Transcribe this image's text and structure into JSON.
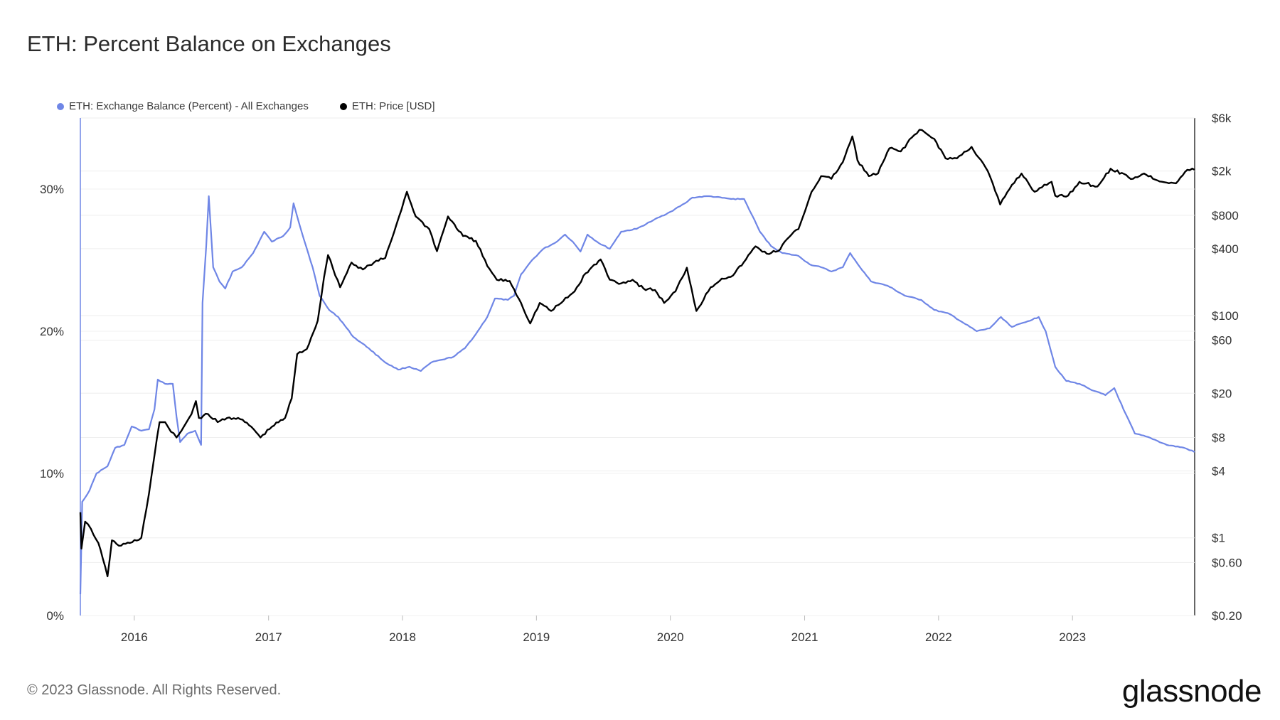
{
  "title": "ETH: Percent Balance on Exchanges",
  "footer": "© 2023 Glassnode. All Rights Reserved.",
  "logo": "glassnode",
  "chart_data": {
    "type": "line",
    "title": "ETH: Percent Balance on Exchanges",
    "legend_position": "top-left",
    "grid": true,
    "x_ticks": [
      "2016",
      "2017",
      "2018",
      "2019",
      "2020",
      "2021",
      "2022",
      "2023"
    ],
    "x_range": [
      "2015-08-07",
      "2023-11-30"
    ],
    "y_left": {
      "ticks": [
        "0%",
        "10%",
        "20%",
        "30%"
      ],
      "range": [
        0,
        35
      ]
    },
    "y_right": {
      "scale": "log",
      "ticks": [
        "$6k",
        "$2k",
        "$800",
        "$400",
        "$100",
        "$60",
        "$20",
        "$8",
        "$4",
        "$1",
        "$0.60",
        "$0.20"
      ],
      "range": [
        0.2,
        6000
      ]
    },
    "series": [
      {
        "name": "ETH: Exchange Balance (Percent) - All Exchanges",
        "axis": "left",
        "color": "#6f86e6",
        "points": [
          [
            "2015-08-07",
            1.5
          ],
          [
            "2015-08-12",
            8.0
          ],
          [
            "2015-09-01",
            8.8
          ],
          [
            "2015-09-20",
            10.0
          ],
          [
            "2015-10-20",
            10.5
          ],
          [
            "2015-11-10",
            11.8
          ],
          [
            "2015-12-05",
            12.0
          ],
          [
            "2015-12-25",
            13.3
          ],
          [
            "2016-01-20",
            13.0
          ],
          [
            "2016-02-10",
            13.1
          ],
          [
            "2016-02-25",
            14.5
          ],
          [
            "2016-03-05",
            16.6
          ],
          [
            "2016-03-25",
            16.3
          ],
          [
            "2016-04-15",
            16.3
          ],
          [
            "2016-04-25",
            14.0
          ],
          [
            "2016-05-05",
            12.2
          ],
          [
            "2016-05-25",
            12.8
          ],
          [
            "2016-06-15",
            13.0
          ],
          [
            "2016-07-01",
            12.0
          ],
          [
            "2016-07-05",
            22.0
          ],
          [
            "2016-07-15",
            26.0
          ],
          [
            "2016-07-22",
            29.5
          ],
          [
            "2016-08-03",
            24.5
          ],
          [
            "2016-08-20",
            23.5
          ],
          [
            "2016-09-05",
            23.0
          ],
          [
            "2016-09-25",
            24.2
          ],
          [
            "2016-10-20",
            24.5
          ],
          [
            "2016-11-20",
            25.5
          ],
          [
            "2016-12-20",
            27.0
          ],
          [
            "2017-01-10",
            26.3
          ],
          [
            "2017-02-10",
            26.7
          ],
          [
            "2017-03-01",
            27.3
          ],
          [
            "2017-03-10",
            29.0
          ],
          [
            "2017-04-01",
            27.0
          ],
          [
            "2017-05-01",
            24.5
          ],
          [
            "2017-05-20",
            22.5
          ],
          [
            "2017-06-15",
            21.5
          ],
          [
            "2017-07-10",
            21.0
          ],
          [
            "2017-08-20",
            19.6
          ],
          [
            "2017-10-01",
            18.8
          ],
          [
            "2017-11-15",
            17.8
          ],
          [
            "2017-12-20",
            17.3
          ],
          [
            "2018-01-20",
            17.5
          ],
          [
            "2018-02-20",
            17.2
          ],
          [
            "2018-03-20",
            17.8
          ],
          [
            "2018-04-20",
            18.0
          ],
          [
            "2018-05-20",
            18.2
          ],
          [
            "2018-06-20",
            18.8
          ],
          [
            "2018-07-20",
            19.8
          ],
          [
            "2018-08-20",
            21.0
          ],
          [
            "2018-09-10",
            22.3
          ],
          [
            "2018-10-15",
            22.2
          ],
          [
            "2018-11-01",
            22.5
          ],
          [
            "2018-11-20",
            24.0
          ],
          [
            "2018-12-20",
            25.0
          ],
          [
            "2019-01-20",
            25.8
          ],
          [
            "2019-02-20",
            26.2
          ],
          [
            "2019-03-20",
            26.8
          ],
          [
            "2019-04-10",
            26.3
          ],
          [
            "2019-05-01",
            25.6
          ],
          [
            "2019-05-20",
            26.8
          ],
          [
            "2019-06-20",
            26.2
          ],
          [
            "2019-07-20",
            25.8
          ],
          [
            "2019-08-20",
            27.0
          ],
          [
            "2019-10-01",
            27.2
          ],
          [
            "2019-11-15",
            27.8
          ],
          [
            "2020-01-01",
            28.4
          ],
          [
            "2020-02-10",
            29.0
          ],
          [
            "2020-03-01",
            29.4
          ],
          [
            "2020-04-15",
            29.5
          ],
          [
            "2020-06-15",
            29.3
          ],
          [
            "2020-07-20",
            29.3
          ],
          [
            "2020-08-10",
            28.2
          ],
          [
            "2020-09-01",
            27.0
          ],
          [
            "2020-10-01",
            26.0
          ],
          [
            "2020-11-01",
            25.5
          ],
          [
            "2020-12-15",
            25.3
          ],
          [
            "2021-01-15",
            24.7
          ],
          [
            "2021-02-15",
            24.5
          ],
          [
            "2021-03-15",
            24.2
          ],
          [
            "2021-04-15",
            24.5
          ],
          [
            "2021-05-05",
            25.5
          ],
          [
            "2021-06-01",
            24.5
          ],
          [
            "2021-07-01",
            23.5
          ],
          [
            "2021-08-15",
            23.2
          ],
          [
            "2021-10-01",
            22.5
          ],
          [
            "2021-11-15",
            22.2
          ],
          [
            "2021-12-20",
            21.5
          ],
          [
            "2022-02-01",
            21.2
          ],
          [
            "2022-03-15",
            20.5
          ],
          [
            "2022-04-15",
            20.0
          ],
          [
            "2022-05-20",
            20.2
          ],
          [
            "2022-06-20",
            21.0
          ],
          [
            "2022-07-20",
            20.3
          ],
          [
            "2022-09-01",
            20.7
          ],
          [
            "2022-10-01",
            21.0
          ],
          [
            "2022-10-20",
            20.0
          ],
          [
            "2022-11-15",
            17.5
          ],
          [
            "2022-12-15",
            16.5
          ],
          [
            "2023-01-20",
            16.3
          ],
          [
            "2023-03-01",
            15.8
          ],
          [
            "2023-04-01",
            15.5
          ],
          [
            "2023-04-25",
            16.0
          ],
          [
            "2023-05-20",
            14.5
          ],
          [
            "2023-06-20",
            12.8
          ],
          [
            "2023-08-01",
            12.5
          ],
          [
            "2023-09-15",
            12.0
          ],
          [
            "2023-11-01",
            11.8
          ],
          [
            "2023-11-30",
            11.5
          ]
        ]
      },
      {
        "name": "ETH: Price [USD]",
        "axis": "right",
        "color": "#000000",
        "points": [
          [
            "2015-08-07",
            1.7
          ],
          [
            "2015-08-10",
            0.8
          ],
          [
            "2015-08-20",
            1.4
          ],
          [
            "2015-09-05",
            1.2
          ],
          [
            "2015-09-25",
            0.9
          ],
          [
            "2015-10-20",
            0.45
          ],
          [
            "2015-11-01",
            0.95
          ],
          [
            "2015-11-20",
            0.85
          ],
          [
            "2015-12-20",
            0.9
          ],
          [
            "2016-01-20",
            1.0
          ],
          [
            "2016-02-10",
            2.5
          ],
          [
            "2016-02-25",
            5.5
          ],
          [
            "2016-03-10",
            11.0
          ],
          [
            "2016-03-25",
            11.0
          ],
          [
            "2016-04-10",
            9.0
          ],
          [
            "2016-04-25",
            8.0
          ],
          [
            "2016-05-15",
            10.0
          ],
          [
            "2016-06-05",
            13.0
          ],
          [
            "2016-06-17",
            17.0
          ],
          [
            "2016-06-25",
            12.0
          ],
          [
            "2016-07-20",
            13.0
          ],
          [
            "2016-08-15",
            11.0
          ],
          [
            "2016-09-10",
            12.0
          ],
          [
            "2016-10-10",
            12.0
          ],
          [
            "2016-11-15",
            10.0
          ],
          [
            "2016-12-10",
            8.0
          ],
          [
            "2017-01-10",
            10.0
          ],
          [
            "2017-02-15",
            12.0
          ],
          [
            "2017-03-05",
            18.0
          ],
          [
            "2017-03-20",
            45.0
          ],
          [
            "2017-04-15",
            50.0
          ],
          [
            "2017-05-15",
            90.0
          ],
          [
            "2017-06-01",
            220.0
          ],
          [
            "2017-06-12",
            350.0
          ],
          [
            "2017-07-15",
            180.0
          ],
          [
            "2017-08-15",
            300.0
          ],
          [
            "2017-09-15",
            260.0
          ],
          [
            "2017-10-15",
            300.0
          ],
          [
            "2017-11-15",
            330.0
          ],
          [
            "2017-12-15",
            650.0
          ],
          [
            "2018-01-13",
            1300.0
          ],
          [
            "2018-02-06",
            780.0
          ],
          [
            "2018-03-15",
            600.0
          ],
          [
            "2018-04-05",
            380.0
          ],
          [
            "2018-05-05",
            780.0
          ],
          [
            "2018-06-15",
            520.0
          ],
          [
            "2018-07-20",
            470.0
          ],
          [
            "2018-08-20",
            280.0
          ],
          [
            "2018-09-15",
            210.0
          ],
          [
            "2018-10-20",
            205.0
          ],
          [
            "2018-11-20",
            130.0
          ],
          [
            "2018-12-15",
            85.0
          ],
          [
            "2019-01-10",
            130.0
          ],
          [
            "2019-02-10",
            110.0
          ],
          [
            "2019-03-15",
            135.0
          ],
          [
            "2019-04-15",
            165.0
          ],
          [
            "2019-05-15",
            240.0
          ],
          [
            "2019-06-25",
            320.0
          ],
          [
            "2019-07-20",
            210.0
          ],
          [
            "2019-08-20",
            195.0
          ],
          [
            "2019-09-20",
            210.0
          ],
          [
            "2019-10-20",
            175.0
          ],
          [
            "2019-11-20",
            170.0
          ],
          [
            "2019-12-15",
            130.0
          ],
          [
            "2020-01-15",
            165.0
          ],
          [
            "2020-02-15",
            270.0
          ],
          [
            "2020-03-12",
            110.0
          ],
          [
            "2020-04-20",
            180.0
          ],
          [
            "2020-05-20",
            215.0
          ],
          [
            "2020-06-20",
            230.0
          ],
          [
            "2020-07-25",
            320.0
          ],
          [
            "2020-08-20",
            420.0
          ],
          [
            "2020-09-20",
            360.0
          ],
          [
            "2020-10-20",
            380.0
          ],
          [
            "2020-11-20",
            510.0
          ],
          [
            "2020-12-15",
            600.0
          ],
          [
            "2021-01-20",
            1300.0
          ],
          [
            "2021-02-15",
            1800.0
          ],
          [
            "2021-03-15",
            1700.0
          ],
          [
            "2021-04-15",
            2400.0
          ],
          [
            "2021-05-11",
            4100.0
          ],
          [
            "2021-05-25",
            2500.0
          ],
          [
            "2021-06-25",
            1800.0
          ],
          [
            "2021-07-20",
            1900.0
          ],
          [
            "2021-08-20",
            3200.0
          ],
          [
            "2021-09-20",
            3000.0
          ],
          [
            "2021-10-20",
            4000.0
          ],
          [
            "2021-11-10",
            4700.0
          ],
          [
            "2021-12-20",
            3900.0
          ],
          [
            "2022-01-20",
            2600.0
          ],
          [
            "2022-02-20",
            2600.0
          ],
          [
            "2022-04-01",
            3300.0
          ],
          [
            "2022-05-15",
            2000.0
          ],
          [
            "2022-06-18",
            1000.0
          ],
          [
            "2022-07-20",
            1500.0
          ],
          [
            "2022-08-15",
            1900.0
          ],
          [
            "2022-09-20",
            1300.0
          ],
          [
            "2022-11-05",
            1600.0
          ],
          [
            "2022-11-15",
            1200.0
          ],
          [
            "2022-12-20",
            1200.0
          ],
          [
            "2023-01-20",
            1600.0
          ],
          [
            "2023-03-10",
            1450.0
          ],
          [
            "2023-04-15",
            2100.0
          ],
          [
            "2023-06-15",
            1700.0
          ],
          [
            "2023-07-15",
            1900.0
          ],
          [
            "2023-08-20",
            1650.0
          ],
          [
            "2023-10-10",
            1550.0
          ],
          [
            "2023-11-10",
            2050.0
          ],
          [
            "2023-11-30",
            2050.0
          ]
        ]
      }
    ]
  }
}
